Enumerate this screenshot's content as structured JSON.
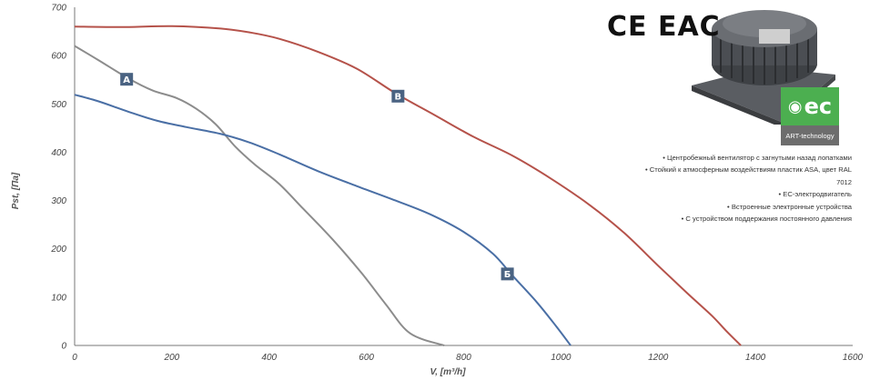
{
  "chart_data": {
    "type": "line",
    "xlabel": "V, [m³/h]",
    "ylabel": "Pst, [Па]",
    "xlim": [
      0,
      1600
    ],
    "ylim": [
      0,
      700
    ],
    "x_ticks": [
      0,
      200,
      400,
      600,
      800,
      1000,
      1200,
      1400,
      1600
    ],
    "y_ticks": [
      0,
      100,
      200,
      300,
      400,
      500,
      600,
      700
    ],
    "grid": false,
    "series": [
      {
        "name": "А",
        "color": "#8c8c8c",
        "points": [
          [
            0,
            620
          ],
          [
            50,
            590
          ],
          [
            110,
            553
          ],
          [
            160,
            528
          ],
          [
            210,
            512
          ],
          [
            250,
            490
          ],
          [
            290,
            458
          ],
          [
            330,
            412
          ],
          [
            370,
            375
          ],
          [
            420,
            335
          ],
          [
            470,
            283
          ],
          [
            530,
            220
          ],
          [
            590,
            150
          ],
          [
            640,
            85
          ],
          [
            690,
            25
          ],
          [
            760,
            0
          ]
        ],
        "label_at": [
          107,
          551
        ]
      },
      {
        "name": "Б",
        "color": "#4a6fa5",
        "points": [
          [
            0,
            519
          ],
          [
            50,
            505
          ],
          [
            110,
            484
          ],
          [
            170,
            465
          ],
          [
            230,
            452
          ],
          [
            300,
            438
          ],
          [
            360,
            420
          ],
          [
            420,
            396
          ],
          [
            500,
            361
          ],
          [
            580,
            330
          ],
          [
            660,
            300
          ],
          [
            730,
            272
          ],
          [
            800,
            235
          ],
          [
            860,
            190
          ],
          [
            900,
            145
          ],
          [
            950,
            90
          ],
          [
            990,
            40
          ],
          [
            1020,
            0
          ]
        ],
        "label_at": [
          890,
          148
        ]
      },
      {
        "name": "В",
        "color": "#b5524a",
        "points": [
          [
            0,
            660
          ],
          [
            100,
            659
          ],
          [
            200,
            661
          ],
          [
            300,
            656
          ],
          [
            360,
            648
          ],
          [
            420,
            635
          ],
          [
            500,
            608
          ],
          [
            580,
            573
          ],
          [
            660,
            522
          ],
          [
            740,
            477
          ],
          [
            820,
            432
          ],
          [
            900,
            393
          ],
          [
            980,
            345
          ],
          [
            1060,
            290
          ],
          [
            1130,
            233
          ],
          [
            1200,
            165
          ],
          [
            1260,
            108
          ],
          [
            1310,
            62
          ],
          [
            1340,
            30
          ],
          [
            1370,
            0
          ]
        ],
        "label_at": [
          665,
          516
        ]
      }
    ]
  },
  "certifications": "CE EAC",
  "ec_badge": {
    "logo_text": "ec",
    "caption": "ART-technology",
    "green": "#4caf50",
    "grey": "#6d6d6d"
  },
  "features": [
    "• Центробежный вентилятор с загнутыми назад лопатками",
    "• Стойкий к атмосферным воздействиям пластик ASA, цвет RAL",
    "7012",
    "• EC-электродвигатель",
    "• Встроенные электронные устройства",
    "• С устройством поддержания постоянного давления"
  ]
}
